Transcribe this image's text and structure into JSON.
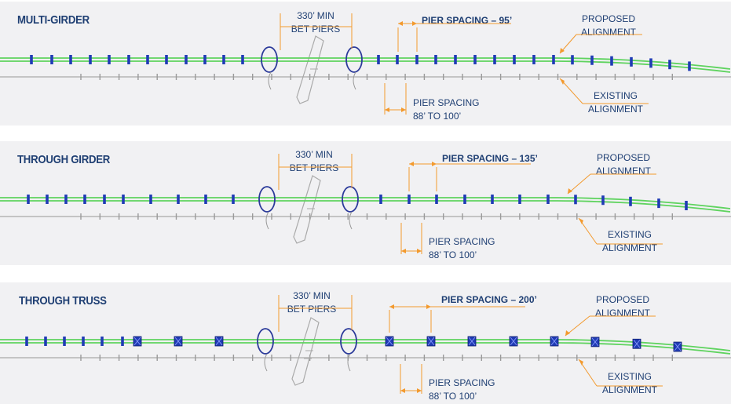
{
  "colors": {
    "panel_bg": "#f1f1f3",
    "title": "#1f3f73",
    "label": "#1f3f73",
    "proposed_alignment": "#5fd35f",
    "existing_alignment": "#b5b5b5",
    "pier": "#1f3bb5",
    "callout": "#f39a2e",
    "pier_ellipse": "#2b3a9a",
    "road": "#a9a9a9"
  },
  "panels": [
    {
      "title": "MULTI-GIRDER",
      "min_label_1": "330’ MIN",
      "min_label_2": "BET PIERS",
      "spacing_label": "PIER SPACING – 95’",
      "proposed_1": "PROPOSED",
      "proposed_2": "ALIGNMENT",
      "existing_1": "EXISTING",
      "existing_2": "ALIGNMENT",
      "existing_spacing_1": "PIER SPACING",
      "existing_spacing_2": "88’ TO 100’"
    },
    {
      "title": "THROUGH GIRDER",
      "min_label_1": "330’ MIN",
      "min_label_2": "BET PIERS",
      "spacing_label": "PIER SPACING – 135’",
      "proposed_1": "PROPOSED",
      "proposed_2": "ALIGNMENT",
      "existing_1": "EXISTING",
      "existing_2": "ALIGNMENT",
      "existing_spacing_1": "PIER SPACING",
      "existing_spacing_2": "88’ TO 100’"
    },
    {
      "title": "THROUGH TRUSS",
      "min_label_1": "330’ MIN",
      "min_label_2": "BET PIERS",
      "spacing_label": "PIER SPACING – 200’",
      "proposed_1": "PROPOSED",
      "proposed_2": "ALIGNMENT",
      "existing_1": "EXISTING",
      "existing_2": "ALIGNMENT",
      "existing_spacing_1": "PIER SPACING",
      "existing_spacing_2": "88’ TO 100’"
    }
  ]
}
